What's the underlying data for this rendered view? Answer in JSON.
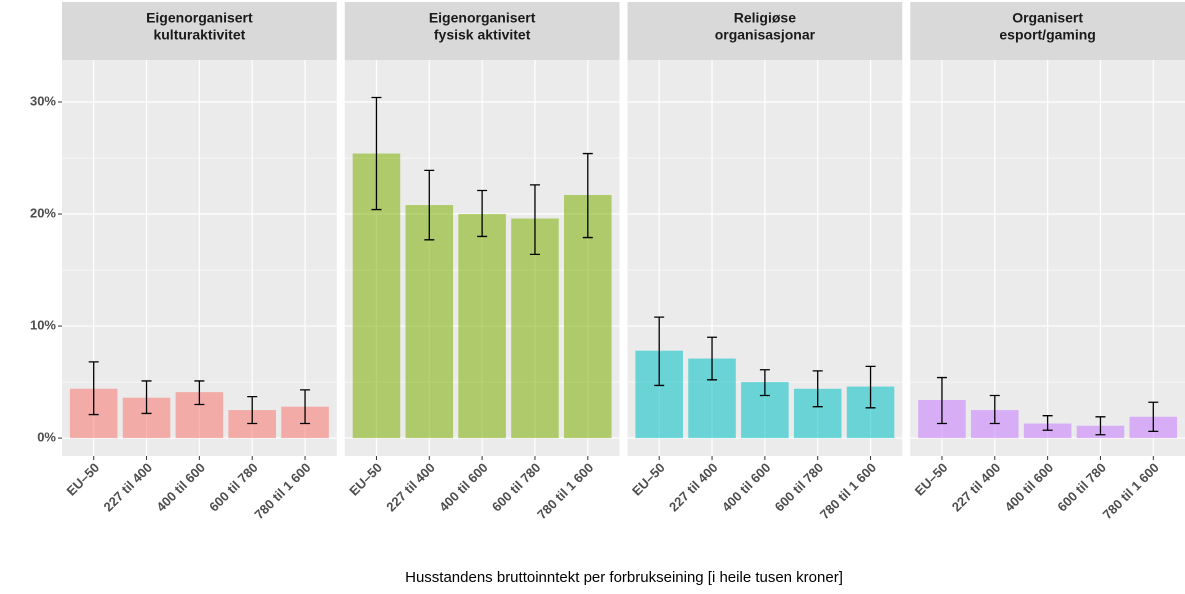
{
  "chart_data": {
    "type": "bar",
    "xlabel": "Husstandens bruttoinntekt per forbrukseining [i heile tusen kroner]",
    "categories": [
      "EU–50",
      "227 til 400",
      "400 til 600",
      "600 til 780",
      "780 til 1 600"
    ],
    "ylim": [
      -1.6,
      33.75
    ],
    "yticks": [
      {
        "value": 0,
        "label": "0%"
      },
      {
        "value": 10,
        "label": "10%"
      },
      {
        "value": 20,
        "label": "20%"
      },
      {
        "value": 30,
        "label": "30%"
      }
    ],
    "grid": true,
    "panels": [
      {
        "title": [
          "Eigenorganisert",
          "kulturaktivitet"
        ],
        "color": "#F8766D",
        "values": [
          4.4,
          3.6,
          4.1,
          2.5,
          2.8
        ],
        "ci_low": [
          2.1,
          2.2,
          3.0,
          1.3,
          1.3
        ],
        "ci_high": [
          6.8,
          5.1,
          5.1,
          3.7,
          4.3
        ]
      },
      {
        "title": [
          "Eigenorganisert",
          "fysisk aktivitet"
        ],
        "color": "#7CAE00",
        "values": [
          25.4,
          20.8,
          20.0,
          19.6,
          21.7
        ],
        "ci_low": [
          20.4,
          17.7,
          18.0,
          16.4,
          17.9
        ],
        "ci_high": [
          30.4,
          23.9,
          22.1,
          22.6,
          25.4
        ]
      },
      {
        "title": [
          "Religiøse",
          "organisasjonar"
        ],
        "color": "#00BFC4",
        "values": [
          7.8,
          7.1,
          5.0,
          4.4,
          4.6
        ],
        "ci_low": [
          4.7,
          5.2,
          3.8,
          2.8,
          2.7
        ],
        "ci_high": [
          10.8,
          9.0,
          6.1,
          6.0,
          6.4
        ]
      },
      {
        "title": [
          "Organisert",
          "esport/gaming"
        ],
        "color": "#C77CFF",
        "values": [
          3.4,
          2.5,
          1.3,
          1.1,
          1.9
        ],
        "ci_low": [
          1.3,
          1.3,
          0.7,
          0.3,
          0.6
        ],
        "ci_high": [
          5.4,
          3.8,
          2.0,
          1.9,
          3.2
        ]
      }
    ]
  }
}
